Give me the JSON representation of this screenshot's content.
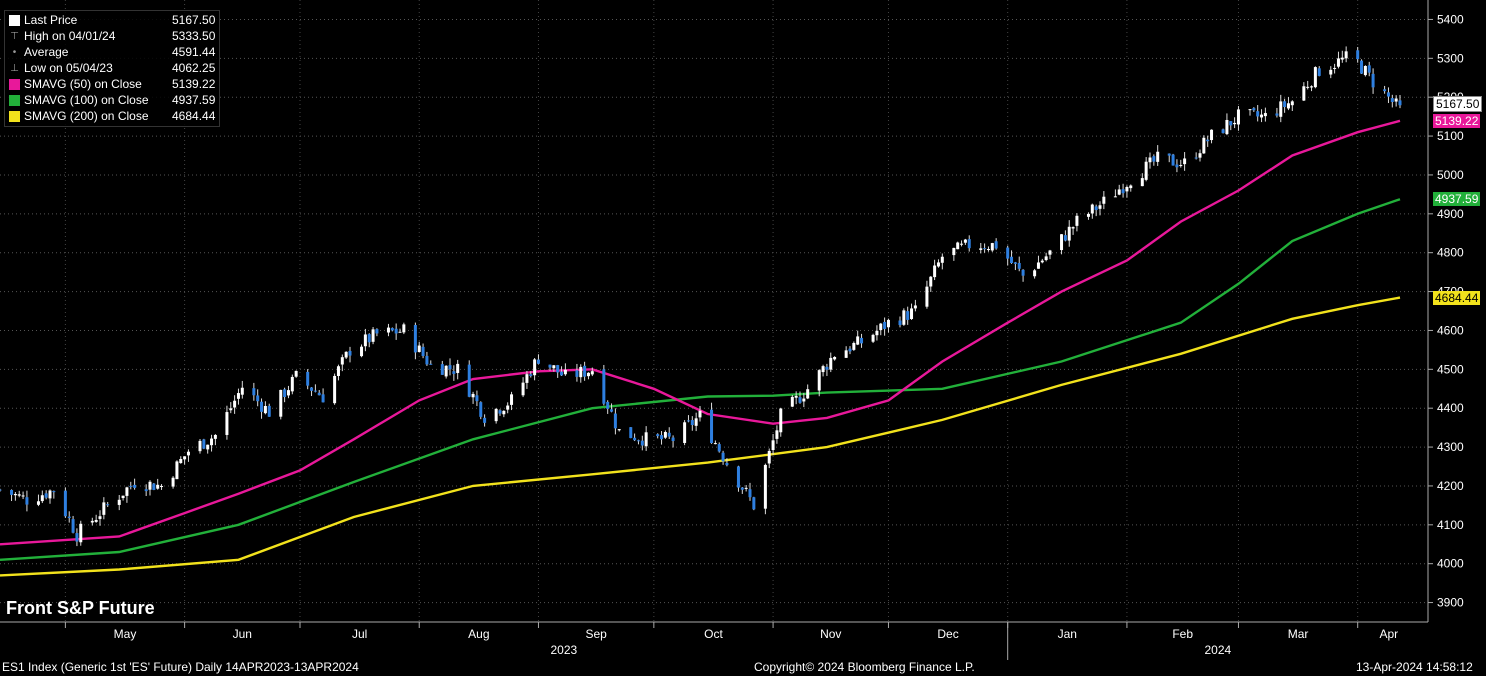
{
  "legend": {
    "items": [
      {
        "label": "Last Price",
        "value": "5167.50",
        "symbol": "box",
        "color": "#ffffff"
      },
      {
        "label": "High on 04/01/24",
        "value": "5333.50",
        "symbol": "high-icon",
        "color": "#999999"
      },
      {
        "label": "Average",
        "value": "4591.44",
        "symbol": "average-icon",
        "color": "#999999"
      },
      {
        "label": "Low on 05/04/23",
        "value": "4062.25",
        "symbol": "low-icon",
        "color": "#999999"
      },
      {
        "label": "SMAVG (50)  on Close",
        "value": "5139.22",
        "symbol": "box",
        "color": "#e8189a"
      },
      {
        "label": "SMAVG (100)  on Close",
        "value": "4937.59",
        "symbol": "box",
        "color": "#22b03a"
      },
      {
        "label": "SMAVG (200)  on Close",
        "value": "4684.44",
        "symbol": "box",
        "color": "#f2e21c"
      }
    ]
  },
  "title": "Front S&P Future",
  "footer": {
    "left": "ES1 Index (Generic 1st 'ES' Future)  Daily 14APR2023-13APR2024",
    "center": "Copyright© 2024 Bloomberg Finance L.P.",
    "right": "13-Apr-2024 14:58:12"
  },
  "tags": {
    "last": "5167.50",
    "sma50": "5139.22",
    "sma100": "4937.59",
    "sma200": "4684.44"
  },
  "chart_data": {
    "type": "candlestick",
    "x_range": [
      "2023-04-14",
      "2024-04-12"
    ],
    "ylim": [
      3850,
      5450
    ],
    "y_ticks": [
      3900,
      4000,
      4100,
      4200,
      4300,
      4400,
      4500,
      4600,
      4700,
      4800,
      4900,
      5000,
      5100,
      5200,
      5300,
      5400
    ],
    "month_labels": [
      "May",
      "Jun",
      "Jul",
      "Aug",
      "Sep",
      "Oct",
      "Nov",
      "Dec",
      "Jan",
      "Feb",
      "Mar",
      "Apr"
    ],
    "year_labels": [
      "2023",
      "2024"
    ],
    "grid": true,
    "legend_position": "top-left",
    "colors": {
      "up": "#ffffff",
      "down": "#2e7fe0",
      "sma50": "#e8189a",
      "sma100": "#22b03a",
      "sma200": "#f2e21c"
    },
    "close_path": [
      [
        "2023-04-14",
        4190
      ],
      [
        "2023-04-21",
        4165
      ],
      [
        "2023-04-28",
        4190
      ],
      [
        "2023-05-04",
        4075
      ],
      [
        "2023-05-12",
        4150
      ],
      [
        "2023-05-19",
        4210
      ],
      [
        "2023-05-26",
        4200
      ],
      [
        "2023-06-02",
        4290
      ],
      [
        "2023-06-09",
        4330
      ],
      [
        "2023-06-16",
        4455
      ],
      [
        "2023-06-23",
        4390
      ],
      [
        "2023-06-30",
        4480
      ],
      [
        "2023-07-07",
        4430
      ],
      [
        "2023-07-14",
        4550
      ],
      [
        "2023-07-21",
        4590
      ],
      [
        "2023-07-28",
        4600
      ],
      [
        "2023-08-04",
        4510
      ],
      [
        "2023-08-11",
        4500
      ],
      [
        "2023-08-18",
        4380
      ],
      [
        "2023-08-25",
        4420
      ],
      [
        "2023-09-01",
        4530
      ],
      [
        "2023-09-08",
        4480
      ],
      [
        "2023-09-15",
        4500
      ],
      [
        "2023-09-22",
        4340
      ],
      [
        "2023-09-29",
        4320
      ],
      [
        "2023-10-06",
        4320
      ],
      [
        "2023-10-13",
        4380
      ],
      [
        "2023-10-20",
        4260
      ],
      [
        "2023-10-27",
        4150
      ],
      [
        "2023-11-03",
        4380
      ],
      [
        "2023-11-10",
        4450
      ],
      [
        "2023-11-17",
        4540
      ],
      [
        "2023-11-24",
        4570
      ],
      [
        "2023-12-01",
        4620
      ],
      [
        "2023-12-08",
        4650
      ],
      [
        "2023-12-15",
        4790
      ],
      [
        "2023-12-22",
        4820
      ],
      [
        "2023-12-29",
        4820
      ],
      [
        "2024-01-05",
        4740
      ],
      [
        "2024-01-12",
        4800
      ],
      [
        "2024-01-19",
        4880
      ],
      [
        "2024-01-26",
        4930
      ],
      [
        "2024-02-02",
        4990
      ],
      [
        "2024-02-09",
        5040
      ],
      [
        "2024-02-16",
        5030
      ],
      [
        "2024-02-23",
        5100
      ],
      [
        "2024-03-01",
        5150
      ],
      [
        "2024-03-08",
        5150
      ],
      [
        "2024-03-15",
        5190
      ],
      [
        "2024-03-22",
        5270
      ],
      [
        "2024-03-29",
        5300
      ],
      [
        "2024-04-01",
        5290
      ],
      [
        "2024-04-05",
        5240
      ],
      [
        "2024-04-12",
        5167.5
      ]
    ],
    "sma50": [
      [
        "2023-04-14",
        4050
      ],
      [
        "2023-05-15",
        4070
      ],
      [
        "2023-06-01",
        4130
      ],
      [
        "2023-06-15",
        4180
      ],
      [
        "2023-07-01",
        4240
      ],
      [
        "2023-07-15",
        4320
      ],
      [
        "2023-08-01",
        4420
      ],
      [
        "2023-08-15",
        4475
      ],
      [
        "2023-09-01",
        4495
      ],
      [
        "2023-09-15",
        4500
      ],
      [
        "2023-10-01",
        4450
      ],
      [
        "2023-10-15",
        4385
      ],
      [
        "2023-11-01",
        4360
      ],
      [
        "2023-11-15",
        4375
      ],
      [
        "2023-12-01",
        4420
      ],
      [
        "2023-12-15",
        4520
      ],
      [
        "2024-01-01",
        4620
      ],
      [
        "2024-01-15",
        4700
      ],
      [
        "2024-02-01",
        4780
      ],
      [
        "2024-02-15",
        4880
      ],
      [
        "2024-03-01",
        4960
      ],
      [
        "2024-03-15",
        5050
      ],
      [
        "2024-04-01",
        5110
      ],
      [
        "2024-04-12",
        5139.22
      ]
    ],
    "sma100": [
      [
        "2023-04-14",
        4010
      ],
      [
        "2023-05-15",
        4030
      ],
      [
        "2023-06-15",
        4100
      ],
      [
        "2023-07-15",
        4210
      ],
      [
        "2023-08-15",
        4320
      ],
      [
        "2023-09-15",
        4400
      ],
      [
        "2023-10-15",
        4430
      ],
      [
        "2023-11-01",
        4432
      ],
      [
        "2023-11-15",
        4440
      ],
      [
        "2023-12-15",
        4450
      ],
      [
        "2024-01-15",
        4520
      ],
      [
        "2024-02-15",
        4620
      ],
      [
        "2024-03-01",
        4720
      ],
      [
        "2024-03-15",
        4830
      ],
      [
        "2024-04-01",
        4900
      ],
      [
        "2024-04-12",
        4937.59
      ]
    ],
    "sma200": [
      [
        "2023-04-14",
        3970
      ],
      [
        "2023-05-15",
        3985
      ],
      [
        "2023-06-15",
        4010
      ],
      [
        "2023-07-15",
        4120
      ],
      [
        "2023-08-15",
        4200
      ],
      [
        "2023-09-15",
        4230
      ],
      [
        "2023-10-15",
        4260
      ],
      [
        "2023-11-15",
        4300
      ],
      [
        "2023-12-15",
        4370
      ],
      [
        "2024-01-15",
        4460
      ],
      [
        "2024-02-15",
        4540
      ],
      [
        "2024-03-15",
        4630
      ],
      [
        "2024-04-01",
        4665
      ],
      [
        "2024-04-12",
        4684.44
      ]
    ]
  }
}
